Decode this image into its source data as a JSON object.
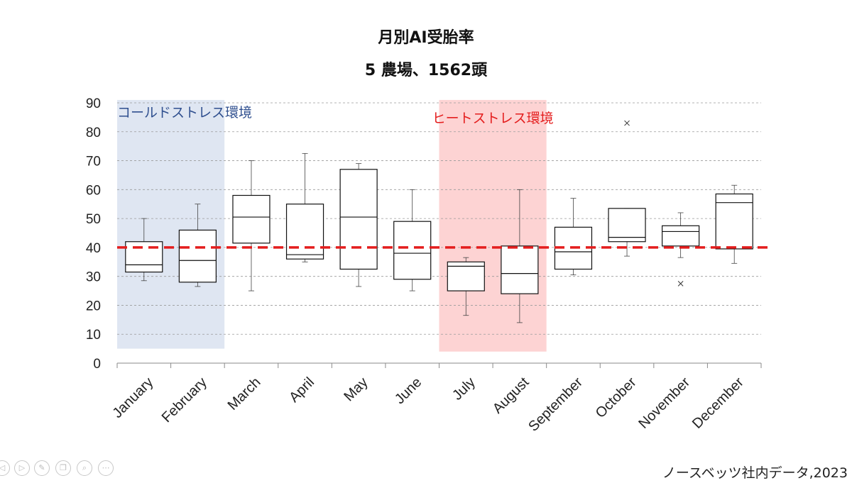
{
  "chart_data": {
    "type": "boxplot",
    "title": "月別AI受胎率",
    "subtitle": "5 農場、1562頭",
    "ylim": [
      0,
      90
    ],
    "yticks": [
      0,
      10,
      20,
      30,
      40,
      50,
      60,
      70,
      80,
      90
    ],
    "grid": true,
    "reference_line": {
      "value": 40,
      "color": "#e41d1d",
      "style": "dashed"
    },
    "regions": [
      {
        "label": "コールドストレス環境",
        "from": "January",
        "to": "February",
        "y_range": [
          5,
          91
        ],
        "color": "#dfe6f2",
        "label_color": "#2f4f8f"
      },
      {
        "label": "ヒートストレス環境",
        "from": "July",
        "to": "August",
        "y_range": [
          4,
          91
        ],
        "color": "#fdd3d3",
        "label_color": "#e41d1d"
      }
    ],
    "categories": [
      "January",
      "February",
      "March",
      "April",
      "May",
      "June",
      "July",
      "August",
      "September",
      "October",
      "November",
      "December"
    ],
    "boxes": [
      {
        "min": 28.5,
        "q1": 31.5,
        "median": 34,
        "q3": 42,
        "max": 50,
        "outliers": []
      },
      {
        "min": 26.5,
        "q1": 28,
        "median": 35.5,
        "q3": 46,
        "max": 55,
        "outliers": []
      },
      {
        "min": 25,
        "q1": 41.5,
        "median": 50.5,
        "q3": 58,
        "max": 70,
        "outliers": []
      },
      {
        "min": 35,
        "q1": 36,
        "median": 37.5,
        "q3": 55,
        "max": 72.5,
        "outliers": []
      },
      {
        "min": 26.5,
        "q1": 32.5,
        "median": 50.5,
        "q3": 67,
        "max": 69,
        "outliers": []
      },
      {
        "min": 25,
        "q1": 29,
        "median": 38,
        "q3": 49,
        "max": 60,
        "outliers": []
      },
      {
        "min": 16.5,
        "q1": 25,
        "median": 33.5,
        "q3": 35,
        "max": 36.5,
        "outliers": []
      },
      {
        "min": 14,
        "q1": 24,
        "median": 31,
        "q3": 40.5,
        "max": 60,
        "outliers": []
      },
      {
        "min": 30.5,
        "q1": 32.5,
        "median": 38.5,
        "q3": 47,
        "max": 57,
        "outliers": []
      },
      {
        "min": 37,
        "q1": 42,
        "median": 43.5,
        "q3": 53.5,
        "max": 53.5,
        "outliers": [
          83
        ]
      },
      {
        "min": 36.5,
        "q1": 40.5,
        "median": 45.5,
        "q3": 47.5,
        "max": 52,
        "outliers": [
          27.5
        ]
      },
      {
        "min": 34.5,
        "q1": 39.5,
        "median": 55.5,
        "q3": 58.5,
        "max": 61.5,
        "outliers": []
      }
    ]
  },
  "source_note": "ノースベッツ社内データ,2023",
  "toolbar": {
    "icons": [
      "back-icon",
      "play-icon",
      "pen-icon",
      "copy-icon",
      "zoom-icon",
      "more-icon"
    ]
  }
}
